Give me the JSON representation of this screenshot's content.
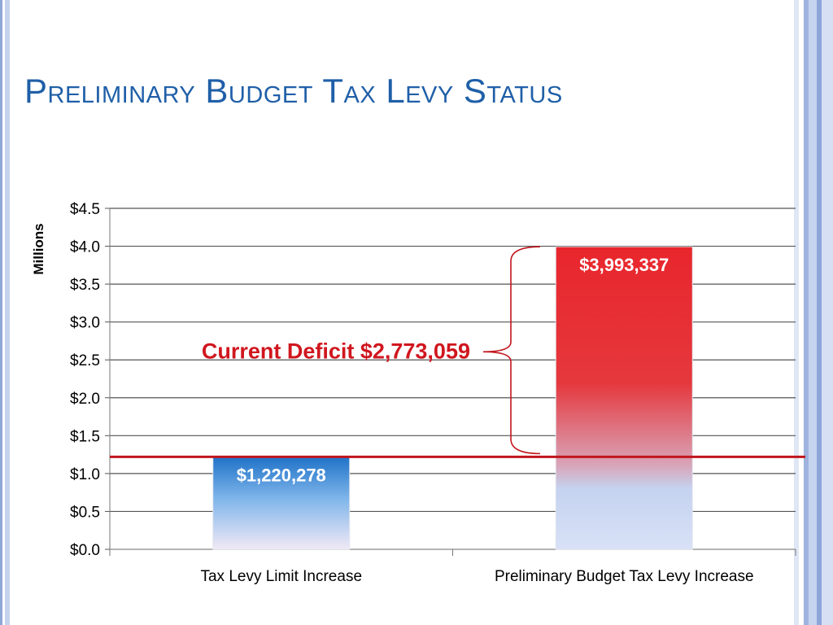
{
  "slide": {
    "title": "Preliminary Budget Tax Levy Status"
  },
  "chart_data": {
    "type": "bar",
    "categories": [
      "Tax Levy Limit Increase",
      "Preliminary Budget Tax Levy Increase"
    ],
    "values": [
      1.220278,
      3.993337
    ],
    "data_labels": [
      "$1,220,278",
      "$3,993,337"
    ],
    "ylabel": "Millions",
    "ylim": [
      0,
      4.5
    ],
    "yticks": [
      0.0,
      0.5,
      1.0,
      1.5,
      2.0,
      2.5,
      3.0,
      3.5,
      4.0,
      4.5
    ],
    "ytick_labels": [
      "$0.0",
      "$0.5",
      "$1.0",
      "$1.5",
      "$2.0",
      "$2.5",
      "$3.0",
      "$3.5",
      "$4.0",
      "$4.5"
    ],
    "grid": true,
    "reference_line": {
      "value": 1.220278,
      "color": "#c0161d"
    },
    "annotation": {
      "text": "Current Deficit $2,773,059",
      "from": 1.220278,
      "to": 3.993337,
      "color": "#d0161e"
    },
    "colors": {
      "bar_limit": "#2f86d6",
      "bar_budget": "#e8262c",
      "gridline": "#555555"
    }
  }
}
